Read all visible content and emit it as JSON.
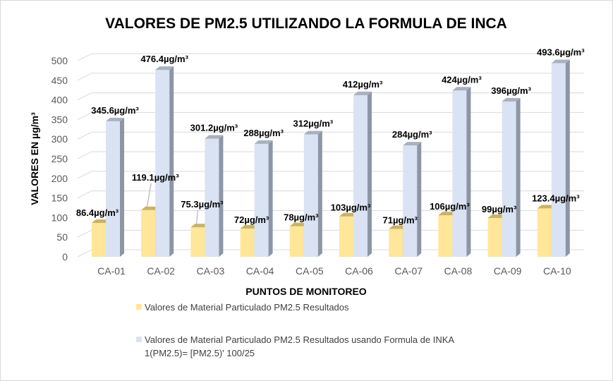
{
  "chart_data": {
    "type": "bar",
    "style": "3d-clustered-column",
    "title": "VALORES DE PM2.5 UTILIZANDO LA FORMULA DE INCA",
    "xlabel": "PUNTOS DE MONITOREO",
    "ylabel": "VALORES EN µg/m³",
    "ylim": [
      0,
      500
    ],
    "yticks": [
      0,
      50,
      100,
      150,
      200,
      250,
      300,
      350,
      400,
      450,
      500
    ],
    "grid": true,
    "legend_position": "bottom",
    "categories": [
      "CA-01",
      "CA-02",
      "CA-03",
      "CA-04",
      "CA-05",
      "CA-06",
      "CA-07",
      "CA-08",
      "CA-09",
      "CA-10"
    ],
    "series": [
      {
        "name": "Valores de Material Particulado PM2.5  Resultados",
        "color": "#FFE699",
        "values": [
          86.4,
          119.1,
          75.3,
          72,
          78,
          103,
          71,
          106,
          99,
          123.4
        ],
        "labels": [
          "86.4µg/m³",
          "119.1µg/m³",
          "75.3µg/m³",
          "72µg/m³",
          "78µg/m³",
          "103µg/m³",
          "71µg/m³",
          "106µg/m³",
          "99µg/m³",
          "123.4µg/m³"
        ]
      },
      {
        "name": "Valores de Material Particulado PM2.5  Resultados usando Formula de INKA",
        "name_line2": "1(PM2.5)= [PM2.5)' 100/25",
        "color": "#DAE3F3",
        "values": [
          345.6,
          476.4,
          301.2,
          288,
          312,
          412,
          284,
          424,
          396,
          493.6
        ],
        "labels": [
          "345.6µg/m³",
          "476.4µg/m³",
          "301.2µg/m³",
          "288µg/m³",
          "312µg/m³",
          "412µg/m³",
          "284µg/m³",
          "424µg/m³",
          "396µg/m³",
          "493.6µg/m³"
        ]
      }
    ]
  }
}
